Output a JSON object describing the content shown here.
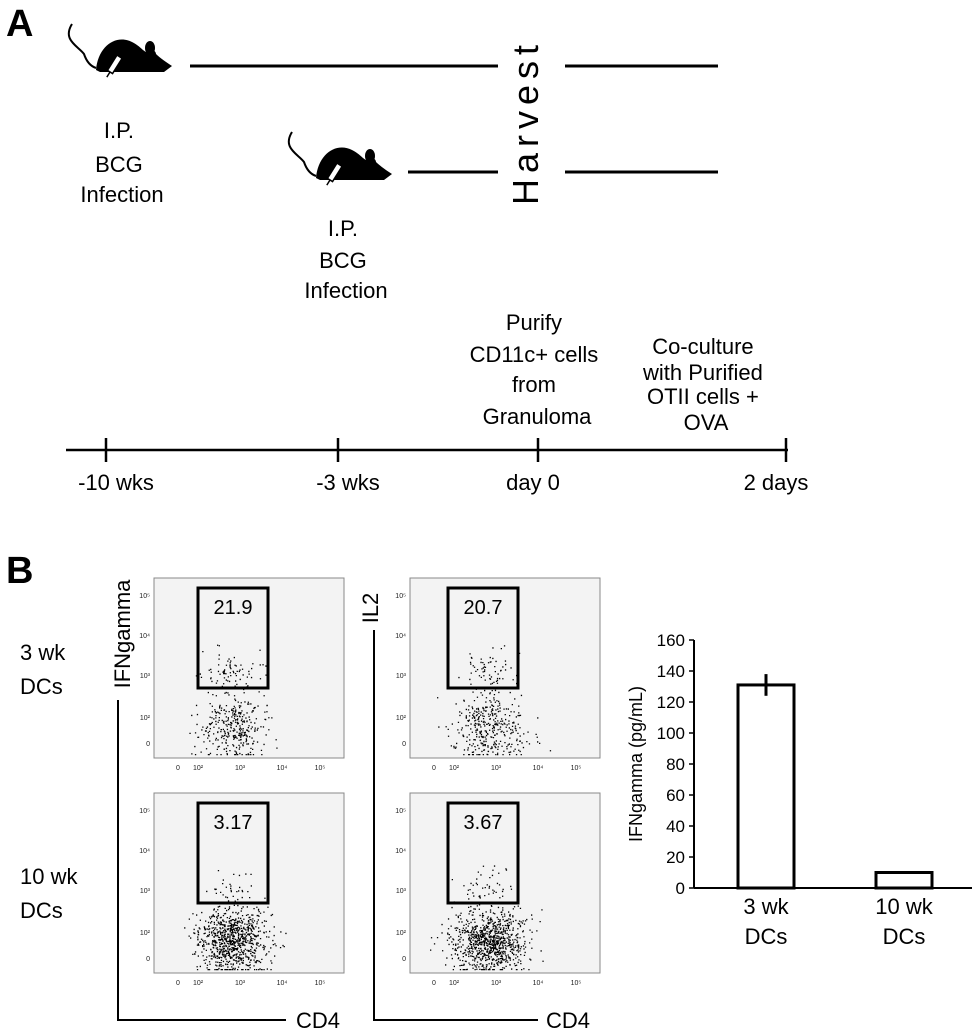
{
  "panel_a": {
    "letter": "A",
    "harvest": "Harvest",
    "infection_1": [
      "I.P.",
      "BCG",
      "Infection"
    ],
    "infection_2": [
      "I.P.",
      "BCG",
      "Infection"
    ],
    "steps": {
      "purify": [
        "Purify",
        "CD11c+ cells",
        "from",
        "Granuloma"
      ],
      "coculture": [
        "Co-culture",
        "with Purified",
        "OTII cells +",
        "OVA"
      ]
    },
    "timeline": [
      "-10 wks",
      "-3 wks",
      "day 0",
      "2 days"
    ]
  },
  "panel_b": {
    "letter": "B",
    "rows": [
      [
        "3 wk",
        "DCs"
      ],
      [
        "10 wk",
        "DCs"
      ]
    ],
    "flow_y_labels": [
      "IFNgamma",
      "IL2"
    ],
    "flow_x_label": "CD4",
    "gates": [
      "21.9",
      "20.7",
      "3.17",
      "3.67"
    ],
    "flow_y_ticks": [
      "10⁵",
      "10⁴",
      "10³",
      "10²",
      "0"
    ],
    "flow_x_ticks": [
      "0",
      "10²",
      "10³",
      "10⁴",
      "10⁵"
    ]
  },
  "chart_data": {
    "type": "bar",
    "categories": [
      [
        "3 wk",
        "DCs"
      ],
      [
        "10 wk",
        "DCs"
      ]
    ],
    "values": [
      131,
      10
    ],
    "errors": [
      7,
      0
    ],
    "ylabel": "IFNgamma (pg/mL)",
    "ylim": [
      0,
      160
    ],
    "yticks": [
      0,
      20,
      40,
      60,
      80,
      100,
      120,
      140,
      160
    ],
    "bar_fill": "#ffffff",
    "bar_stroke": "#000000"
  }
}
